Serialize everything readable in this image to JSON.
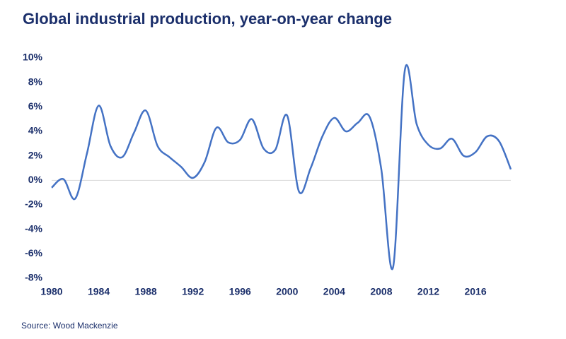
{
  "chart_data": {
    "type": "line",
    "title": "Global industrial production, year-on-year change",
    "source": "Source: Wood Mackenzie",
    "x": [
      1980,
      1981,
      1982,
      1983,
      1984,
      1985,
      1986,
      1987,
      1988,
      1989,
      1990,
      1991,
      1992,
      1993,
      1994,
      1995,
      1996,
      1997,
      1998,
      1999,
      2000,
      2001,
      2002,
      2003,
      2004,
      2005,
      2006,
      2007,
      2008,
      2009,
      2010,
      2011,
      2012,
      2013,
      2014,
      2015,
      2016,
      2017,
      2018,
      2019
    ],
    "series": [
      {
        "color": "#4472c4",
        "values": [
          -0.6,
          0.1,
          -1.5,
          2.2,
          6.1,
          2.8,
          1.9,
          3.9,
          5.7,
          2.8,
          1.9,
          1.1,
          0.2,
          1.5,
          4.3,
          3.1,
          3.3,
          5.0,
          2.6,
          2.5,
          5.3,
          -0.9,
          1.0,
          3.6,
          5.1,
          4.0,
          4.7,
          5.2,
          0.9,
          -7.1,
          9.0,
          4.6,
          2.9,
          2.6,
          3.4,
          2.0,
          2.3,
          3.6,
          3.2,
          0.9
        ]
      }
    ],
    "xlim": [
      1980,
      2019
    ],
    "xticks": [
      1980,
      1984,
      1988,
      1992,
      1996,
      2000,
      2004,
      2008,
      2012,
      2016
    ],
    "ylim": [
      -8,
      10
    ],
    "yticks": [
      {
        "value": -8,
        "label": "-8%"
      },
      {
        "value": -6,
        "label": "-6%"
      },
      {
        "value": -4,
        "label": "-4%"
      },
      {
        "value": -2,
        "label": "-2%"
      },
      {
        "value": 0,
        "label": "0%"
      },
      {
        "value": 2,
        "label": "2%"
      },
      {
        "value": 4,
        "label": "4%"
      },
      {
        "value": 6,
        "label": "6%"
      },
      {
        "value": 8,
        "label": "8%"
      },
      {
        "value": 10,
        "label": "10%"
      }
    ]
  }
}
